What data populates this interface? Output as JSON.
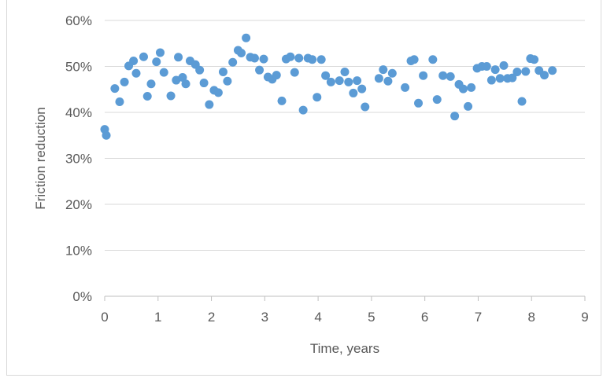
{
  "chart_data": {
    "type": "scatter",
    "title": "",
    "xlabel": "Time, years",
    "ylabel": "Friction reduction",
    "xlim": [
      0,
      9
    ],
    "ylim": [
      0,
      60
    ],
    "x_ticks": [
      "0",
      "1",
      "2",
      "3",
      "4",
      "5",
      "6",
      "7",
      "8",
      "9"
    ],
    "y_ticks": [
      "0%",
      "10%",
      "20%",
      "30%",
      "40%",
      "50%",
      "60%"
    ],
    "y_unit": "%",
    "grid": "horizontal",
    "legend": "none",
    "marker_color": "#5b9bd5",
    "series": [
      {
        "points": [
          [
            0.0,
            36.3
          ],
          [
            0.03,
            35.0
          ],
          [
            0.19,
            45.2
          ],
          [
            0.28,
            42.3
          ],
          [
            0.37,
            46.6
          ],
          [
            0.45,
            50.1
          ],
          [
            0.54,
            51.2
          ],
          [
            0.59,
            48.5
          ],
          [
            0.73,
            52.1
          ],
          [
            0.8,
            43.5
          ],
          [
            0.87,
            46.2
          ],
          [
            0.97,
            51.0
          ],
          [
            1.04,
            53.0
          ],
          [
            1.11,
            48.7
          ],
          [
            1.24,
            43.6
          ],
          [
            1.34,
            47.0
          ],
          [
            1.38,
            52.0
          ],
          [
            1.46,
            47.6
          ],
          [
            1.52,
            46.2
          ],
          [
            1.6,
            51.2
          ],
          [
            1.7,
            50.4
          ],
          [
            1.78,
            49.2
          ],
          [
            1.86,
            46.4
          ],
          [
            1.96,
            41.7
          ],
          [
            2.05,
            44.8
          ],
          [
            2.13,
            44.3
          ],
          [
            2.22,
            48.8
          ],
          [
            2.3,
            46.8
          ],
          [
            2.4,
            50.9
          ],
          [
            2.5,
            53.5
          ],
          [
            2.56,
            52.9
          ],
          [
            2.65,
            56.2
          ],
          [
            2.73,
            52.0
          ],
          [
            2.81,
            51.8
          ],
          [
            2.9,
            49.2
          ],
          [
            2.98,
            51.6
          ],
          [
            3.06,
            47.7
          ],
          [
            3.14,
            47.2
          ],
          [
            3.22,
            48.1
          ],
          [
            3.32,
            42.5
          ],
          [
            3.4,
            51.6
          ],
          [
            3.48,
            52.1
          ],
          [
            3.56,
            48.7
          ],
          [
            3.64,
            51.8
          ],
          [
            3.72,
            40.5
          ],
          [
            3.81,
            51.8
          ],
          [
            3.89,
            51.5
          ],
          [
            3.98,
            43.3
          ],
          [
            4.06,
            51.5
          ],
          [
            4.14,
            48.0
          ],
          [
            4.24,
            46.6
          ],
          [
            4.4,
            46.9
          ],
          [
            4.5,
            48.8
          ],
          [
            4.57,
            46.6
          ],
          [
            4.66,
            44.2
          ],
          [
            4.73,
            46.9
          ],
          [
            4.82,
            45.1
          ],
          [
            4.88,
            41.2
          ],
          [
            5.14,
            47.4
          ],
          [
            5.22,
            49.3
          ],
          [
            5.31,
            46.8
          ],
          [
            5.39,
            48.5
          ],
          [
            5.63,
            45.4
          ],
          [
            5.74,
            51.2
          ],
          [
            5.8,
            51.5
          ],
          [
            5.88,
            42.0
          ],
          [
            5.97,
            48.0
          ],
          [
            6.15,
            51.5
          ],
          [
            6.23,
            42.8
          ],
          [
            6.34,
            48.0
          ],
          [
            6.48,
            47.8
          ],
          [
            6.56,
            39.2
          ],
          [
            6.64,
            46.1
          ],
          [
            6.72,
            45.1
          ],
          [
            6.81,
            41.3
          ],
          [
            6.87,
            45.4
          ],
          [
            6.98,
            49.6
          ],
          [
            7.07,
            50.0
          ],
          [
            7.16,
            50.0
          ],
          [
            7.25,
            47.0
          ],
          [
            7.32,
            49.3
          ],
          [
            7.41,
            47.4
          ],
          [
            7.48,
            50.2
          ],
          [
            7.55,
            47.4
          ],
          [
            7.64,
            47.5
          ],
          [
            7.73,
            48.8
          ],
          [
            7.82,
            42.4
          ],
          [
            7.89,
            48.9
          ],
          [
            7.98,
            51.7
          ],
          [
            8.05,
            51.5
          ],
          [
            8.14,
            49.1
          ],
          [
            8.24,
            48.1
          ],
          [
            8.39,
            49.1
          ]
        ]
      }
    ]
  }
}
